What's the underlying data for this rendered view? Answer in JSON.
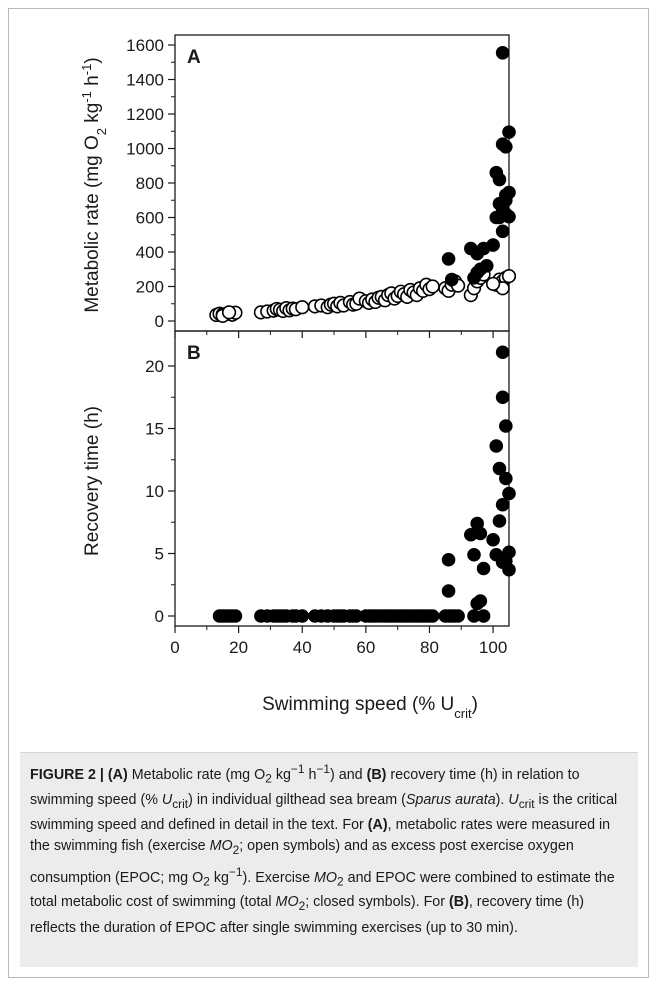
{
  "chart_data": [
    {
      "panel": "A",
      "type": "scatter",
      "xlabel": "Swimming speed (% U",
      "xlabel_sub": "crit",
      "xlabel_close": ")",
      "ylabel": "Metabolic rate (mg O",
      "ylabel_o2_sub": "2",
      "ylabel_mid": " kg",
      "ylabel_kg_sup": "-1",
      "ylabel_h": " h",
      "ylabel_h_sup": "-1",
      "ylabel_close": ")",
      "xlim": [
        0,
        105
      ],
      "ylim": [
        0,
        1600
      ],
      "xticks": [
        0,
        20,
        40,
        60,
        80,
        100
      ],
      "yticks": [
        0,
        200,
        400,
        600,
        800,
        1000,
        1200,
        1400,
        1600
      ],
      "series": [
        {
          "marker": "open-circle",
          "x": [
            13,
            14,
            15,
            16,
            17,
            18,
            19,
            15,
            17,
            27,
            29,
            31,
            32,
            33,
            34,
            35,
            36,
            37,
            38,
            40,
            44,
            46,
            48,
            49,
            50,
            51,
            52,
            53,
            55,
            56,
            57,
            58,
            60,
            61,
            62,
            63,
            64,
            65,
            66,
            67,
            68,
            69,
            70,
            71,
            72,
            73,
            74,
            75,
            76,
            77,
            78,
            79,
            80,
            81,
            85,
            86,
            87,
            88,
            89,
            93,
            94,
            95,
            96,
            97,
            101,
            102,
            103,
            104,
            105,
            103,
            100
          ],
          "y": [
            35,
            42,
            38,
            40,
            45,
            36,
            48,
            30,
            50,
            50,
            55,
            60,
            70,
            65,
            58,
            75,
            62,
            72,
            68,
            80,
            85,
            90,
            80,
            95,
            100,
            85,
            105,
            90,
            110,
            95,
            100,
            130,
            115,
            105,
            125,
            110,
            135,
            140,
            120,
            150,
            160,
            130,
            145,
            170,
            155,
            140,
            180,
            165,
            150,
            190,
            175,
            210,
            185,
            200,
            190,
            175,
            210,
            230,
            205,
            150,
            190,
            230,
            250,
            270,
            210,
            240,
            230,
            250,
            260,
            190,
            215
          ]
        },
        {
          "marker": "filled-circle",
          "x": [
            86,
            87,
            93,
            94,
            95,
            96,
            97,
            95,
            98,
            100,
            101,
            102,
            103,
            103,
            104,
            104,
            105,
            102,
            103,
            104,
            105,
            101,
            102,
            103,
            104,
            105
          ],
          "y": [
            360,
            240,
            420,
            250,
            390,
            300,
            420,
            280,
            320,
            440,
            860,
            820,
            1555,
            1025,
            1010,
            730,
            1095,
            600,
            520,
            700,
            745,
            600,
            680,
            650,
            620,
            605
          ]
        }
      ]
    },
    {
      "panel": "B",
      "type": "scatter",
      "ylabel": "Recovery time (h)",
      "xlim": [
        0,
        105
      ],
      "ylim": [
        0,
        22
      ],
      "xticks": [
        0,
        20,
        40,
        60,
        80,
        100
      ],
      "yticks": [
        0,
        5,
        10,
        15,
        20
      ],
      "series": [
        {
          "marker": "filled-circle",
          "x": [
            14,
            15,
            16,
            17,
            18,
            19,
            27,
            29,
            31,
            32,
            33,
            34,
            35,
            37,
            38,
            40,
            44,
            46,
            48,
            50,
            51,
            52,
            53,
            55,
            56,
            57,
            60,
            61,
            62,
            63,
            64,
            65,
            66,
            67,
            68,
            69,
            70,
            71,
            72,
            73,
            74,
            75,
            76,
            77,
            78,
            79,
            80,
            81,
            85,
            86,
            87,
            88,
            89,
            86,
            86,
            93,
            94,
            95,
            96,
            97,
            94,
            95,
            96,
            97,
            100,
            101,
            102,
            103,
            103,
            104,
            104,
            105,
            101,
            102,
            103,
            104,
            105,
            103,
            105
          ],
          "y": [
            0,
            0,
            0,
            0,
            0,
            0,
            0,
            0,
            0,
            0,
            0,
            0,
            0,
            0,
            0,
            0,
            0,
            0,
            0,
            0,
            0,
            0,
            0,
            0,
            0,
            0,
            0,
            0,
            0,
            0,
            0,
            0,
            0,
            0,
            0,
            0,
            0,
            0,
            0,
            0,
            0,
            0,
            0,
            0,
            0,
            0,
            0,
            0,
            0,
            0,
            0,
            0,
            0,
            4.5,
            2.0,
            6.5,
            4.9,
            7.4,
            6.6,
            3.8,
            0,
            1.0,
            1.2,
            0,
            6.1,
            13.6,
            11.8,
            21.1,
            17.5,
            15.2,
            11.0,
            9.8,
            4.9,
            7.6,
            8.9,
            4.4,
            5.1,
            4.3,
            3.7
          ]
        }
      ]
    }
  ],
  "caption": {
    "label": "FIGURE 2 | ",
    "a_tag": "(A)",
    "t1": " Metabolic rate (mg O",
    "o2sub": "2",
    "t2": " kg",
    "sup1": "−1",
    "t3": " h",
    "sup2": "−1",
    "t4": ") and ",
    "b_tag": "(B)",
    "t5": " recovery time (h) in relation to swimming speed (% ",
    "u_italic": "U",
    "u_sub": "crit",
    "t6": ") in individual gilthead sea bream (",
    "species": "Sparus aurata",
    "t7": "). ",
    "u2_italic": "U",
    "u2_sub": "crit",
    "t8": " is the critical swimming speed and defined in detail in the text. For ",
    "a_tag2": "(A)",
    "t9": ", metabolic rates were measured in the swimming fish (exercise ",
    "mo2_a": "MO",
    "mo2_a_sub": "2",
    "t10": "; open symbols) and as excess post exercise oxygen consumption (EPOC; mg O",
    "o2sub2": "2",
    "t11": " kg",
    "sup3": "−1",
    "t12": "). Exercise ",
    "mo2_b": "MO",
    "mo2_b_sub": "2",
    "t13": " and EPOC were combined to estimate the total metabolic cost of swimming (total ",
    "mo2_c": "MO",
    "mo2_c_sub": "2",
    "t14": "; closed symbols). For ",
    "b_tag2": "(B)",
    "t15": ", recovery time (h) reflects the duration of EPOC after single swimming exercises (up to 30 min)."
  }
}
